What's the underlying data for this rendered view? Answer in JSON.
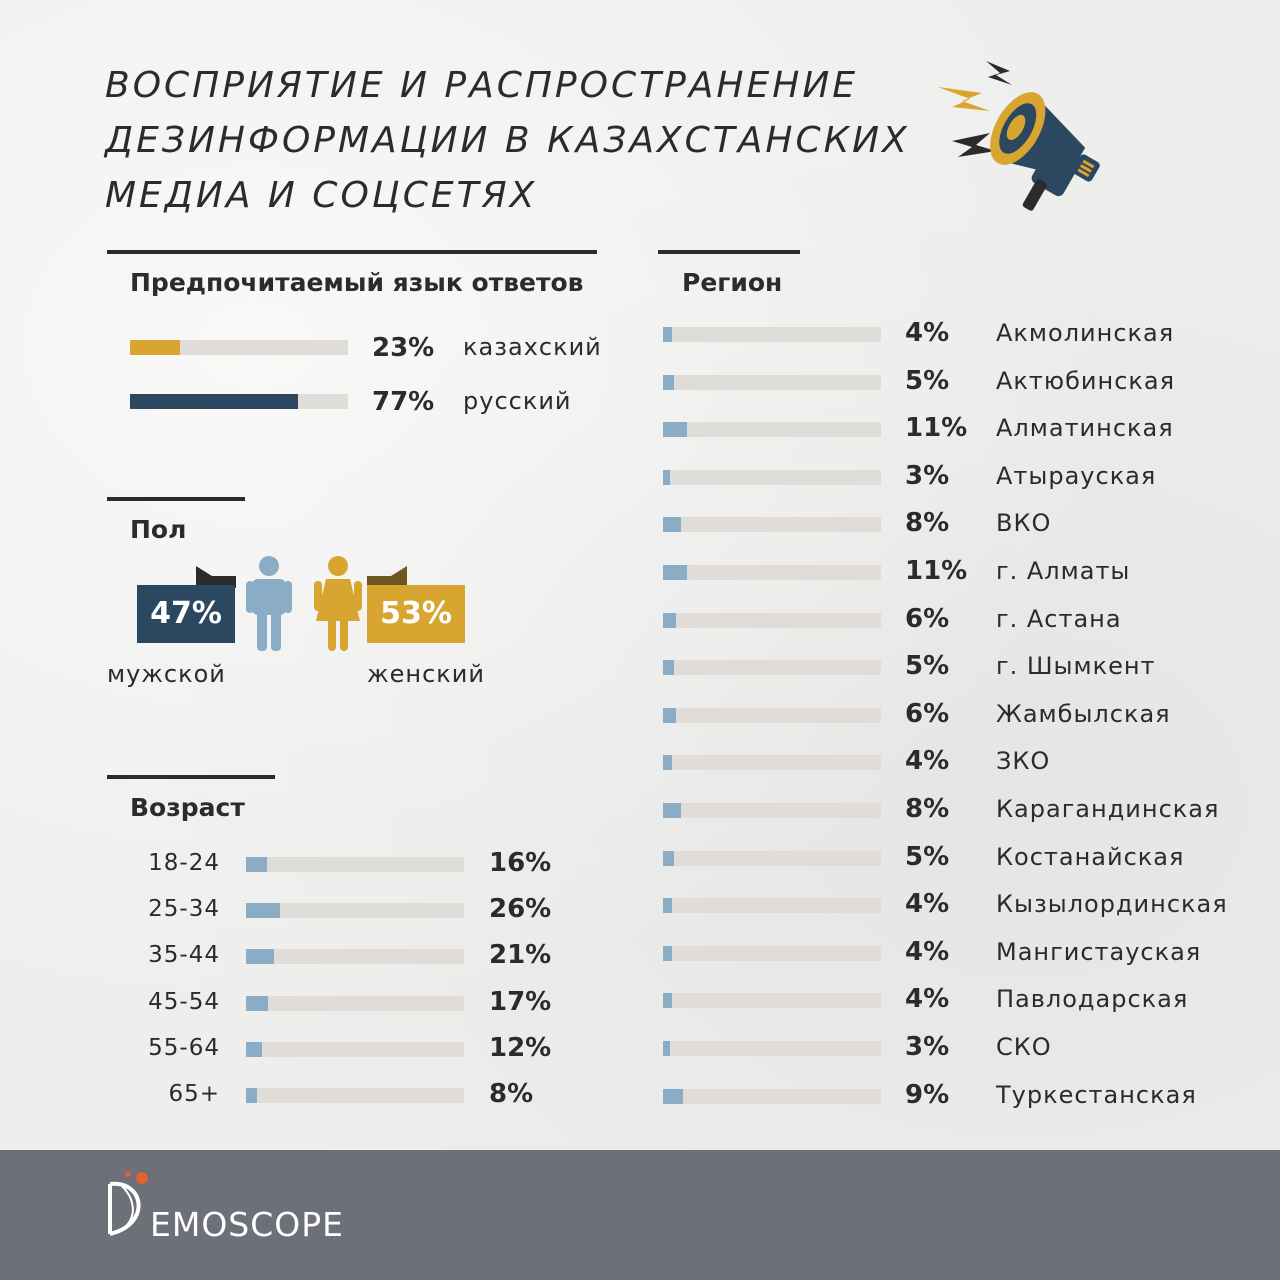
{
  "title_lines": [
    "ВОСПРИЯТИЕ И РАСПРОСТРАНЕНИЕ",
    "ДЕЗИНФОРМАЦИИ В КАЗАХСТАНСКИХ",
    "МЕДИА И СОЦСЕТЯХ"
  ],
  "colors": {
    "kazakh": "#d8a531",
    "russian": "#2c4860",
    "male": "#2c4860",
    "female": "#d8a531",
    "bar_light": "#8aacc5",
    "track": "#e0ddd8",
    "footer": "#6d7079",
    "logo_accent": "#e0622e"
  },
  "language": {
    "heading": "Предпочитаемый язык ответов",
    "items": [
      {
        "label": "казахский",
        "pct": "23%",
        "value": 23,
        "color": "#d8a531"
      },
      {
        "label": "русский",
        "pct": "77%",
        "value": 77,
        "color": "#2c4860"
      }
    ]
  },
  "gender": {
    "heading": "Пол",
    "male": {
      "label": "мужской",
      "pct": "47%",
      "value": 47
    },
    "female": {
      "label": "женский",
      "pct": "53%",
      "value": 53
    }
  },
  "age": {
    "heading": "Возраст",
    "items": [
      {
        "label": "18-24",
        "pct": "16%",
        "value": 16
      },
      {
        "label": "25-34",
        "pct": "26%",
        "value": 26
      },
      {
        "label": "35-44",
        "pct": "21%",
        "value": 21
      },
      {
        "label": "45-54",
        "pct": "17%",
        "value": 17
      },
      {
        "label": "55-64",
        "pct": "12%",
        "value": 12
      },
      {
        "label": "65+",
        "pct": "8%",
        "value": 8
      }
    ]
  },
  "region": {
    "heading": "Регион",
    "items": [
      {
        "label": "Акмолинская",
        "pct": "4%",
        "value": 4
      },
      {
        "label": "Актюбинская",
        "pct": "5%",
        "value": 5
      },
      {
        "label": "Алматинская",
        "pct": "11%",
        "value": 11
      },
      {
        "label": "Атырауская",
        "pct": "3%",
        "value": 3
      },
      {
        "label": "ВКО",
        "pct": "8%",
        "value": 8
      },
      {
        "label": "г. Алматы",
        "pct": "11%",
        "value": 11
      },
      {
        "label": "г. Астана",
        "pct": "6%",
        "value": 6
      },
      {
        "label": "г. Шымкент",
        "pct": "5%",
        "value": 5
      },
      {
        "label": "Жамбылская",
        "pct": "6%",
        "value": 6
      },
      {
        "label": "ЗКО",
        "pct": "4%",
        "value": 4
      },
      {
        "label": "Карагандинская",
        "pct": "8%",
        "value": 8
      },
      {
        "label": "Костанайская",
        "pct": "5%",
        "value": 5
      },
      {
        "label": "Кызылординская",
        "pct": "4%",
        "value": 4
      },
      {
        "label": "Мангистауская",
        "pct": "4%",
        "value": 4
      },
      {
        "label": "Павлодарская",
        "pct": "4%",
        "value": 4
      },
      {
        "label": "СКО",
        "pct": "3%",
        "value": 3
      },
      {
        "label": "Туркестанская",
        "pct": "9%",
        "value": 9
      }
    ]
  },
  "chart_data": [
    {
      "type": "bar",
      "title": "Предпочитаемый язык ответов",
      "categories": [
        "казахский",
        "русский"
      ],
      "values": [
        23,
        77
      ],
      "ylim": [
        0,
        100
      ]
    },
    {
      "type": "bar",
      "title": "Пол",
      "categories": [
        "мужской",
        "женский"
      ],
      "values": [
        47,
        53
      ],
      "ylim": [
        0,
        100
      ]
    },
    {
      "type": "bar",
      "title": "Возраст",
      "categories": [
        "18-24",
        "25-34",
        "35-44",
        "45-54",
        "55-64",
        "65+"
      ],
      "values": [
        16,
        26,
        21,
        17,
        12,
        8
      ],
      "ylim": [
        0,
        100
      ]
    },
    {
      "type": "bar",
      "title": "Регион",
      "categories": [
        "Акмолинская",
        "Актюбинская",
        "Алматинская",
        "Атырауская",
        "ВКО",
        "г. Алматы",
        "г. Астана",
        "г. Шымкент",
        "Жамбылская",
        "ЗКО",
        "Карагандинская",
        "Костанайская",
        "Кызылординская",
        "Мангистауская",
        "Павлодарская",
        "СКО",
        "Туркестанская"
      ],
      "values": [
        4,
        5,
        11,
        3,
        8,
        11,
        6,
        5,
        6,
        4,
        8,
        5,
        4,
        4,
        4,
        3,
        9
      ],
      "ylim": [
        0,
        100
      ]
    }
  ],
  "footer": {
    "logo_letter": "D",
    "logo_text": "EMOSCOPE"
  }
}
